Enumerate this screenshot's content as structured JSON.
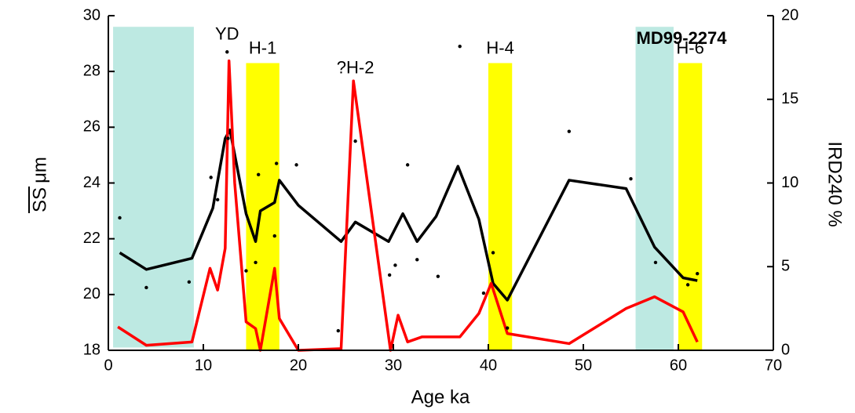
{
  "chart_data": {
    "type": "line",
    "title": "MD99-2274",
    "xlabel": "Age  ka",
    "ylabel_symbol": "SS",
    "ylabel_unit": "μm",
    "y2label": "IRD240  %",
    "y2label_color": "#ff0000",
    "xlim": [
      0,
      70
    ],
    "xticks": [
      0,
      10,
      20,
      30,
      40,
      50,
      60,
      70
    ],
    "ylim": [
      18,
      30
    ],
    "yticks": [
      18,
      20,
      22,
      24,
      26,
      28,
      30
    ],
    "y2lim": [
      0,
      20
    ],
    "y2ticks": [
      0,
      5,
      10,
      15,
      20
    ],
    "bands": [
      {
        "xlim": [
          0.5,
          9
        ],
        "ylim": [
          18.1,
          29.6
        ],
        "color": "#bde9e2"
      },
      {
        "label": "H-1",
        "xlim": [
          14.5,
          18
        ],
        "ylim": [
          18,
          28.3
        ],
        "color": "#ffff00"
      },
      {
        "label": "H-4",
        "xlim": [
          40,
          42.5
        ],
        "ylim": [
          18,
          28.3
        ],
        "color": "#ffff00"
      },
      {
        "xlim": [
          55.5,
          59.5
        ],
        "ylim": [
          18,
          29.6
        ],
        "color": "#bde9e2"
      },
      {
        "label": "H-6",
        "xlim": [
          60,
          62.5
        ],
        "ylim": [
          18,
          28.3
        ],
        "color": "#ffff00"
      }
    ],
    "annotations": [
      {
        "text": "YD",
        "x": 12.5,
        "y": 29.3
      },
      {
        "text": "?H-2",
        "x": 26,
        "y": 28.1
      }
    ],
    "series": [
      {
        "kind": "line",
        "color": "#000000",
        "axis": "y",
        "x": [
          1.2,
          4,
          8.8,
          11,
          12.3,
          12.8,
          14.5,
          15.5,
          16,
          17.5,
          18,
          20,
          24.5,
          26,
          29.5,
          31,
          32.5,
          34.5,
          36.8,
          39,
          40.5,
          42,
          48.5,
          54.5,
          57.5,
          60.5,
          62
        ],
        "values": [
          21.5,
          20.9,
          21.3,
          23.1,
          25.6,
          25.9,
          22.9,
          21.9,
          23,
          23.3,
          24.1,
          23.2,
          21.9,
          22.6,
          21.9,
          22.9,
          21.9,
          22.8,
          24.6,
          22.7,
          20.4,
          19.8,
          24.1,
          23.8,
          21.7,
          20.6,
          20.5
        ]
      },
      {
        "kind": "line",
        "color": "#ff0000",
        "axis": "y2",
        "x": [
          1,
          4,
          8.8,
          10.7,
          11.5,
          12.3,
          12.7,
          13.3,
          14.5,
          15.5,
          16,
          17.5,
          18,
          20,
          24.5,
          25.8,
          29.7,
          30.5,
          31.5,
          33,
          34.5,
          37,
          39,
          40.3,
          42,
          48.5,
          54.5,
          57.5,
          60.5,
          62
        ],
        "values": [
          1.4,
          0.3,
          0.5,
          4.9,
          3.6,
          6.1,
          17.3,
          10,
          1.7,
          1.3,
          0,
          4.9,
          1.9,
          0,
          0.1,
          16.1,
          0,
          2.1,
          0.5,
          0.8,
          0.8,
          0.8,
          2.2,
          4,
          1,
          0.4,
          2.5,
          3.2,
          2.3,
          0.5
        ]
      },
      {
        "kind": "scatter",
        "color": "#000000",
        "axis": "y",
        "x": [
          1.2,
          4,
          8.5,
          10.8,
          11.5,
          12.5,
          12.6,
          14.5,
          15.5,
          15.8,
          17.5,
          17.7,
          19.8,
          24.2,
          26,
          29.6,
          30.2,
          31.5,
          32.5,
          34.7,
          37,
          39.5,
          40.5,
          42,
          48.5,
          55,
          57.6,
          61,
          62
        ],
        "values": [
          22.75,
          20.25,
          20.45,
          24.2,
          23.4,
          28.7,
          25.6,
          20.85,
          21.15,
          24.3,
          22.1,
          24.7,
          24.65,
          18.7,
          25.5,
          20.7,
          21.05,
          24.65,
          21.25,
          20.65,
          28.9,
          20.05,
          21.5,
          18.8,
          25.85,
          24.15,
          21.15,
          20.35,
          20.75
        ]
      }
    ]
  }
}
